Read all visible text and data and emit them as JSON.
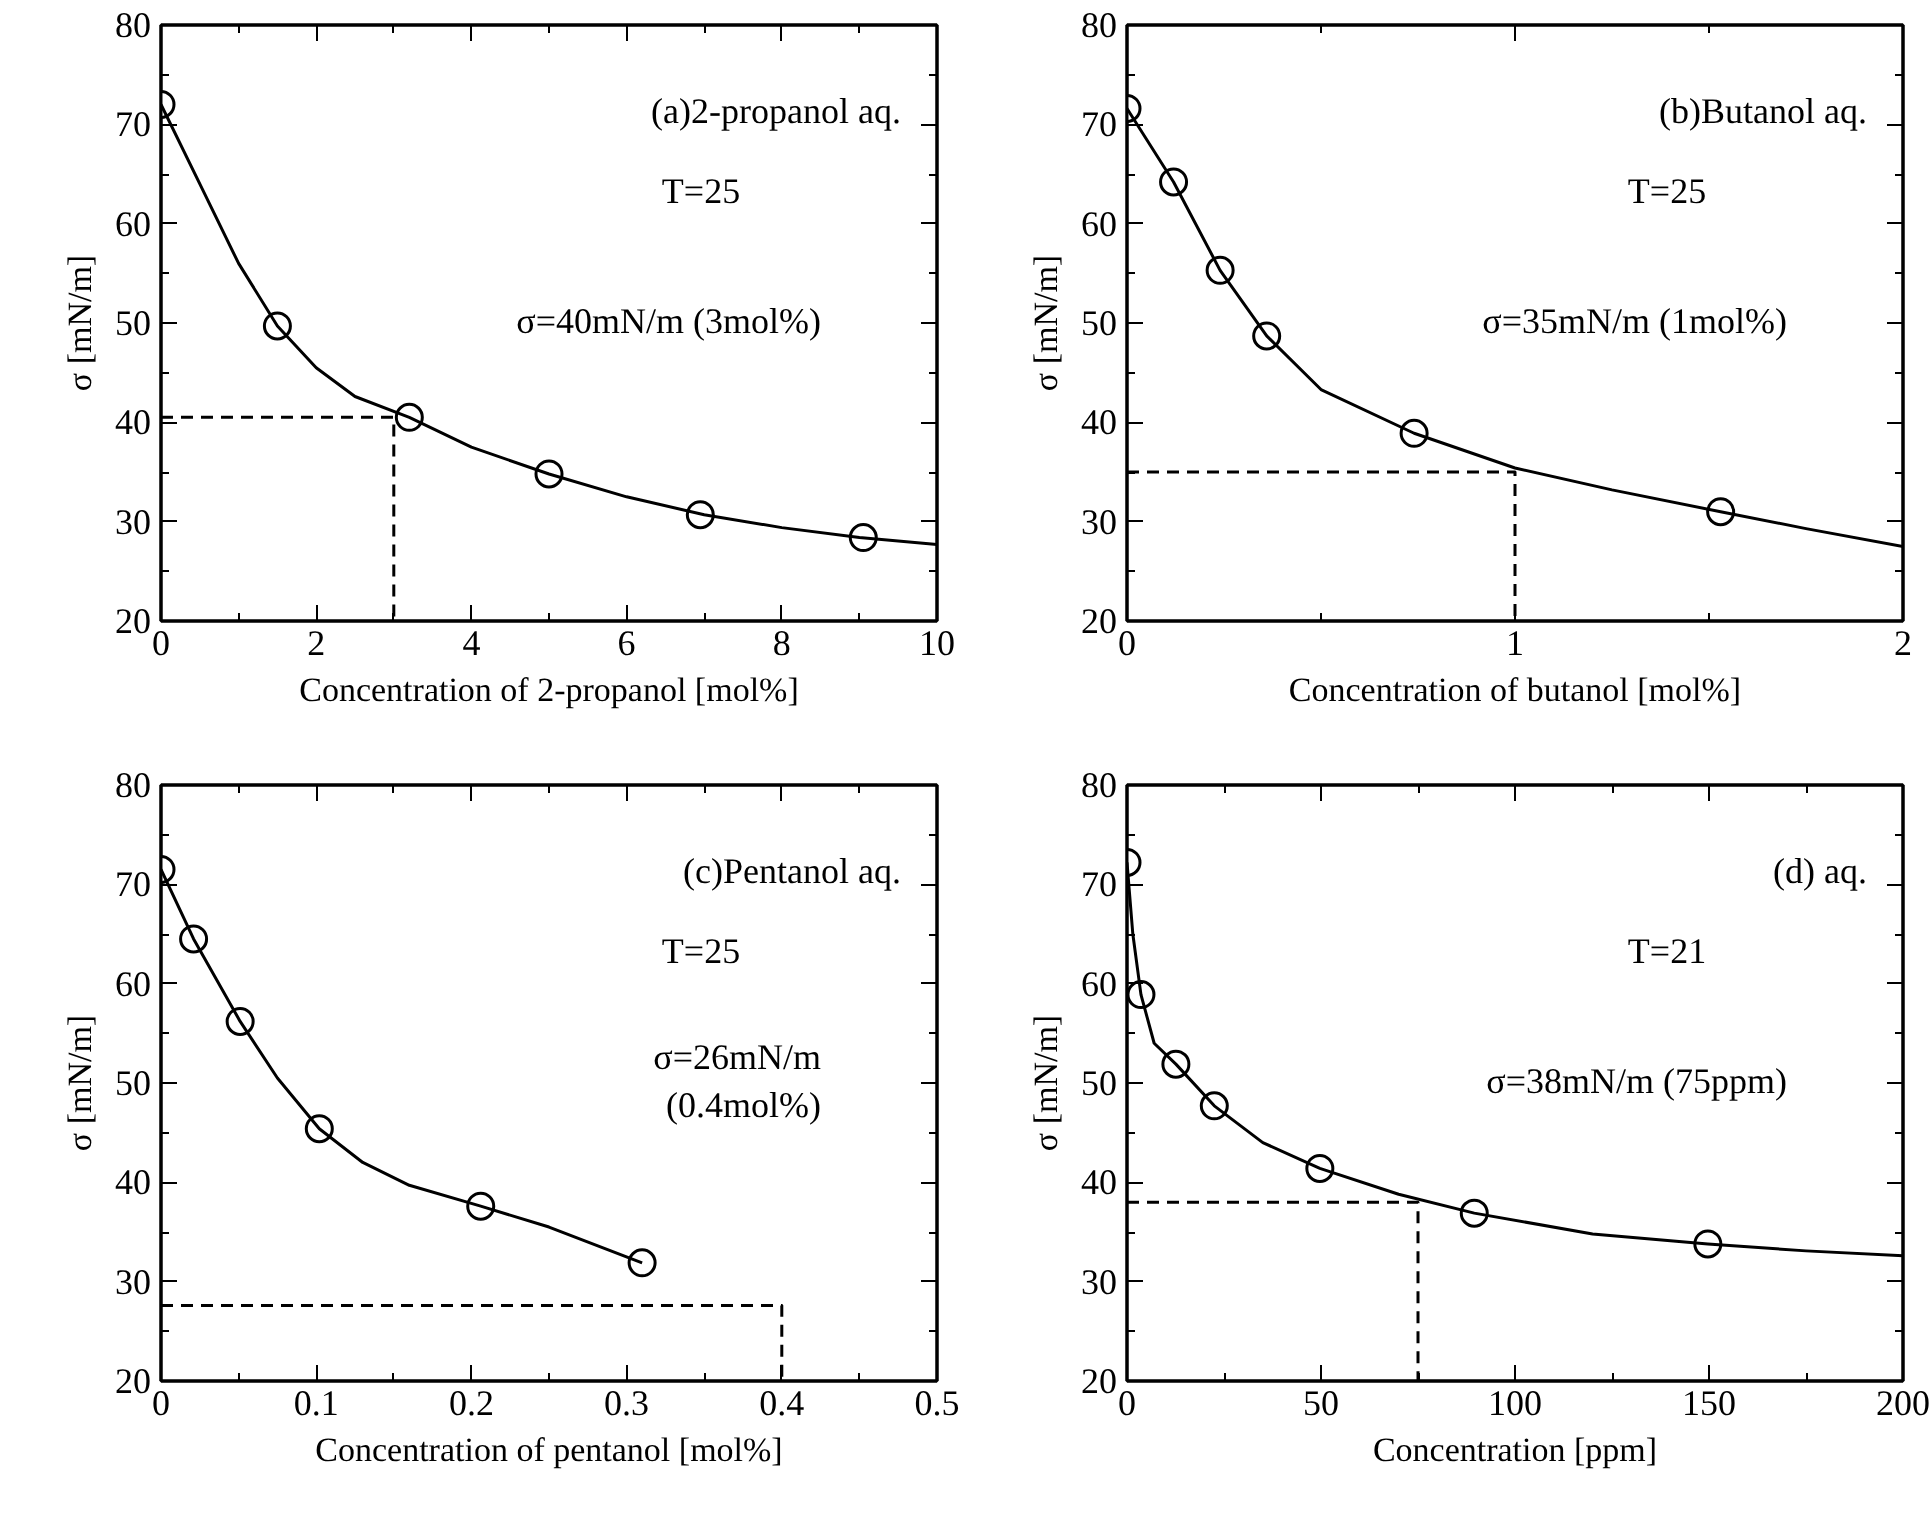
{
  "chart_data": [
    {
      "type": "scatter",
      "xlabel": "Concentration of 2-propanol [mol%]",
      "ylabel": "σ [mN/m]",
      "xlim": [
        0,
        10
      ],
      "ylim": [
        20,
        80
      ],
      "xticks": [
        0,
        2,
        4,
        6,
        8,
        10
      ],
      "yticks": [
        20,
        30,
        40,
        50,
        60,
        70,
        80
      ],
      "grid": false,
      "annotations": [
        "(a)2-propanol aq.",
        "T=25",
        "σ=40mN/m (3mol%)"
      ],
      "series": [
        {
          "marker": "circle",
          "color": "#000000",
          "x": [
            0,
            1.5,
            3.2,
            5,
            6.95,
            9.05
          ],
          "values": [
            72,
            49.7,
            40.5,
            34.8,
            30.7,
            28.4
          ]
        },
        {
          "type": "line",
          "color": "#000000",
          "x": [
            0,
            0.5,
            1,
            1.5,
            2,
            2.5,
            3.2,
            4,
            5,
            6,
            7,
            8,
            9,
            10
          ],
          "values": [
            72,
            64,
            56,
            49.7,
            45.5,
            42.6,
            40.5,
            37.5,
            34.8,
            32.5,
            30.7,
            29.4,
            28.4,
            27.7
          ]
        },
        {
          "type": "line",
          "line_style": "dashed",
          "color": "#000000",
          "x": [
            0,
            3,
            3
          ],
          "values": [
            40.5,
            40.5,
            20
          ]
        }
      ]
    },
    {
      "type": "scatter",
      "xlabel": "Concentration of butanol [mol%]",
      "ylabel": "σ [mN/m]",
      "xlim": [
        0,
        2
      ],
      "ylim": [
        20,
        80
      ],
      "xticks": [
        0,
        1,
        2
      ],
      "yticks": [
        20,
        30,
        40,
        50,
        60,
        70,
        80
      ],
      "grid": false,
      "annotations": [
        "(b)Butanol aq.",
        "T=25",
        "σ=35mN/m (1mol%)"
      ],
      "series": [
        {
          "marker": "circle",
          "color": "#000000",
          "x": [
            0,
            0.12,
            0.24,
            0.36,
            0.74,
            1.53
          ],
          "values": [
            71.6,
            64.2,
            55.3,
            48.7,
            38.9,
            31
          ]
        },
        {
          "type": "line",
          "color": "#000000",
          "x": [
            0,
            0.12,
            0.24,
            0.36,
            0.5,
            0.74,
            1,
            1.25,
            1.53,
            1.75,
            2
          ],
          "values": [
            71.6,
            64.2,
            55.3,
            48.7,
            43.3,
            38.9,
            35.4,
            33.2,
            31,
            29.3,
            27.5
          ]
        },
        {
          "type": "line",
          "line_style": "dashed",
          "color": "#000000",
          "x": [
            0,
            1,
            1
          ],
          "values": [
            35,
            35,
            20
          ]
        }
      ]
    },
    {
      "type": "scatter",
      "xlabel": "Concentration of pentanol [mol%]",
      "ylabel": "σ [mN/m]",
      "xlim": [
        0,
        0.5
      ],
      "ylim": [
        20,
        80
      ],
      "xticks": [
        0,
        0.1,
        0.2,
        0.3,
        0.4,
        0.5
      ],
      "yticks": [
        20,
        30,
        40,
        50,
        60,
        70,
        80
      ],
      "grid": false,
      "annotations": [
        "(c)Pentanol aq.",
        "T=25",
        "σ=26mN/m\n(0.4mol%)"
      ],
      "series": [
        {
          "marker": "circle",
          "color": "#000000",
          "x": [
            0,
            0.021,
            0.051,
            0.102,
            0.206,
            0.31
          ],
          "values": [
            71.5,
            64.5,
            56.2,
            45.4,
            37.6,
            31.9
          ]
        },
        {
          "type": "line",
          "color": "#000000",
          "x": [
            0,
            0.021,
            0.051,
            0.075,
            0.102,
            0.13,
            0.16,
            0.206,
            0.25,
            0.31
          ],
          "values": [
            71.5,
            64.5,
            56.2,
            50.5,
            45.4,
            42,
            39.7,
            37.6,
            35.5,
            31.9
          ]
        },
        {
          "type": "line",
          "line_style": "dashed",
          "color": "#000000",
          "x": [
            0,
            0.4,
            0.4
          ],
          "values": [
            27.6,
            27.6,
            20
          ]
        }
      ]
    },
    {
      "type": "scatter",
      "xlabel": "Concentration [ppm]",
      "ylabel": "σ [mN/m]",
      "xlim": [
        0,
        200
      ],
      "ylim": [
        20,
        80
      ],
      "xticks": [
        0,
        50,
        100,
        150,
        200
      ],
      "yticks": [
        20,
        30,
        40,
        50,
        60,
        70,
        80
      ],
      "grid": false,
      "annotations": [
        "(d) aq.",
        "T=21",
        "σ=38mN/m (75ppm)"
      ],
      "series": [
        {
          "marker": "circle",
          "color": "#000000",
          "x": [
            0,
            3.6,
            12.6,
            22.5,
            49.7,
            89.5,
            149.7
          ],
          "values": [
            72.2,
            58.9,
            51.9,
            47.7,
            41.4,
            36.9,
            33.8
          ]
        },
        {
          "type": "line",
          "color": "#000000",
          "x": [
            0,
            1.5,
            3.6,
            7,
            12.6,
            22.5,
            35,
            49.7,
            70,
            89.5,
            120,
            149.7,
            175,
            200
          ],
          "values": [
            72.2,
            65,
            58.9,
            54,
            51.9,
            47.7,
            44,
            41.4,
            38.8,
            36.9,
            34.8,
            33.8,
            33.1,
            32.6
          ]
        },
        {
          "type": "line",
          "line_style": "dashed",
          "color": "#000000",
          "x": [
            0,
            75,
            75
          ],
          "values": [
            38,
            38,
            20
          ]
        }
      ]
    }
  ]
}
